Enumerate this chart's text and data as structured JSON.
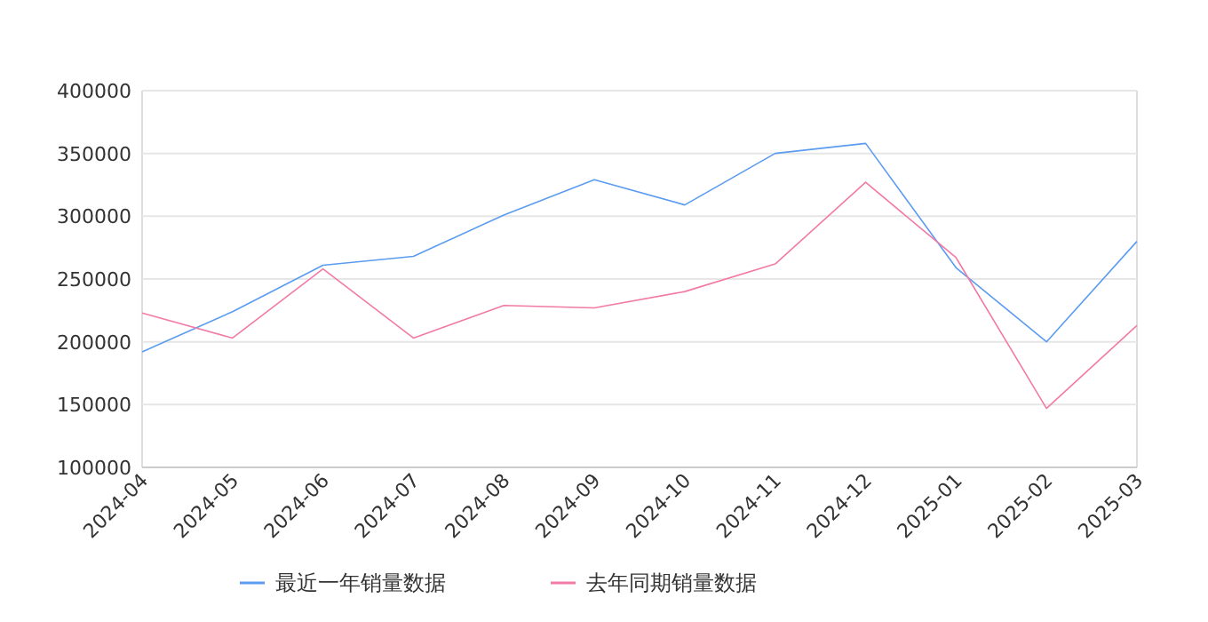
{
  "chart_data": {
    "type": "line",
    "categories": [
      "2024-04",
      "2024-05",
      "2024-06",
      "2024-07",
      "2024-08",
      "2024-09",
      "2024-10",
      "2024-11",
      "2024-12",
      "2025-01",
      "2025-02",
      "2025-03"
    ],
    "series": [
      {
        "name": "最近一年销量数据",
        "color": "#5b9cf0",
        "values": [
          192000,
          224000,
          261000,
          268000,
          301000,
          329000,
          309000,
          350000,
          358000,
          259000,
          200000,
          280000
        ]
      },
      {
        "name": "去年同期销量数据",
        "color": "#f27aa6",
        "values": [
          223000,
          203000,
          258000,
          203000,
          229000,
          227000,
          240000,
          262000,
          327000,
          267000,
          147000,
          213000
        ]
      }
    ],
    "ylim": [
      100000,
      400000
    ],
    "yticks": [
      100000,
      150000,
      200000,
      250000,
      300000,
      350000,
      400000
    ],
    "grid": "y",
    "legend": "bottom",
    "marker": "none",
    "line_style": "solid"
  }
}
